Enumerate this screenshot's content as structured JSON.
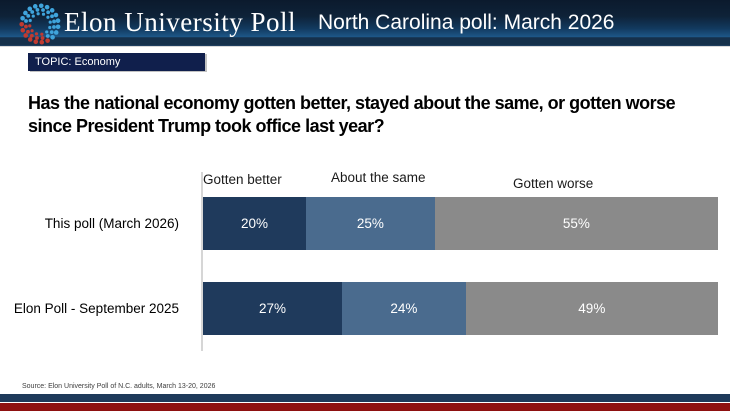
{
  "header": {
    "brand": "Elon University Poll",
    "title": "North Carolina poll: March 2026"
  },
  "topic_badge": "TOPIC: Economy",
  "question": "Has the national economy gotten better, stayed about the same, or gotten worse since President Trump took office last year?",
  "source": "Source: Elon University Poll of N.C. adults, March 13-20, 2026",
  "chart_data": {
    "type": "bar",
    "stacked": true,
    "orientation": "horizontal",
    "categories": [
      "Gotten better",
      "About the same",
      "Gotten worse"
    ],
    "rows": [
      {
        "label": "This poll (March 2026)",
        "values": [
          20,
          25,
          55
        ]
      },
      {
        "label": "Elon Poll - September 2025",
        "values": [
          27,
          24,
          49
        ]
      }
    ],
    "value_suffix": "%",
    "xlim": [
      0,
      100
    ],
    "series_colors": [
      "#1f3a5c",
      "#4a6b8e",
      "#8a8a8a"
    ],
    "legend_position": "top"
  },
  "colors": {
    "header_gradient_top": "#0b1a2d",
    "header_gradient_light": "#1d5787",
    "header_strip": "#15304b",
    "topic_bg": "#101f4c",
    "stripe_navy": "#1e3a5a",
    "stripe_red": "#8e1111",
    "logo_blue": "#3fa4dc",
    "logo_red": "#c13a30",
    "axis_line": "#d6d6d6"
  }
}
